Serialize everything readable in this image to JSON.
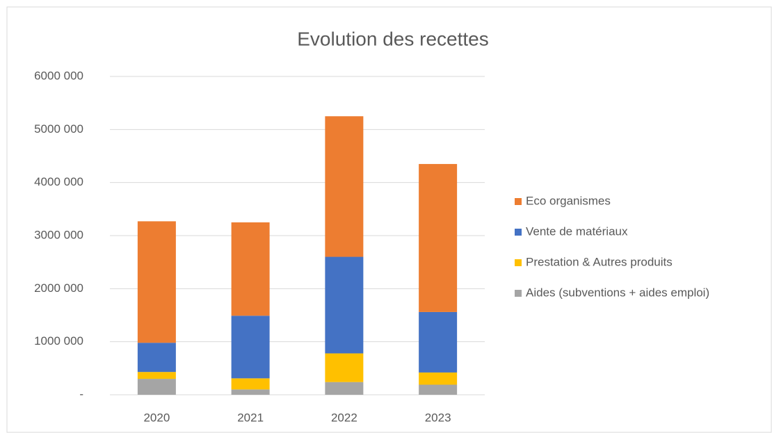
{
  "chart_data": {
    "type": "stacked_bar",
    "title": "Evolution des recettes",
    "categories": [
      "2020",
      "2021",
      "2022",
      "2023"
    ],
    "series": [
      {
        "name": "Aides (subventions + aides emploi)",
        "color": "#a5a5a5",
        "values": [
          300000,
          100000,
          240000,
          190000
        ]
      },
      {
        "name": "Prestation & Autres produits",
        "color": "#ffc000",
        "values": [
          130000,
          210000,
          540000,
          230000
        ]
      },
      {
        "name": "Vente de matériaux",
        "color": "#4472c4",
        "values": [
          550000,
          1180000,
          1820000,
          1140000
        ]
      },
      {
        "name": "Eco organismes",
        "color": "#ed7d31",
        "values": [
          2290000,
          1760000,
          2650000,
          2790000
        ]
      }
    ],
    "ylim": [
      0,
      6000000
    ],
    "yticks": [
      {
        "value": 0,
        "label": "-"
      },
      {
        "value": 1000000,
        "label": "1000 000"
      },
      {
        "value": 2000000,
        "label": "2000 000"
      },
      {
        "value": 3000000,
        "label": "3000 000"
      },
      {
        "value": 4000000,
        "label": "4000 000"
      },
      {
        "value": 5000000,
        "label": "5000 000"
      },
      {
        "value": 6000000,
        "label": "6000 000"
      }
    ],
    "grid": true,
    "legend": "right"
  }
}
